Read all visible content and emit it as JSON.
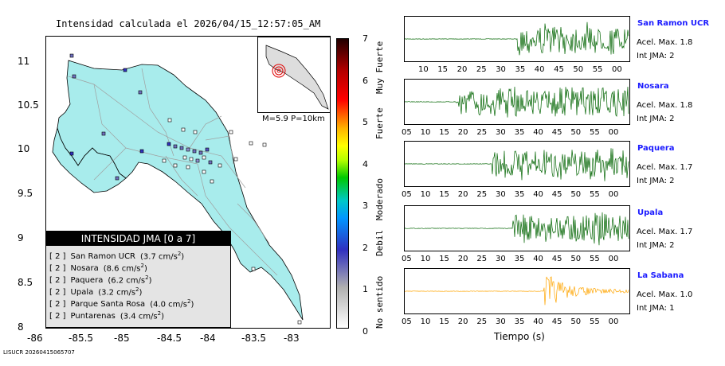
{
  "map": {
    "title": "Intensidad calculada el 2026/04/15_12:57:05_AM",
    "x_ticks": [
      "-86",
      "-85.5",
      "-85",
      "-84.5",
      "-84",
      "-83.5",
      "-83"
    ],
    "y_ticks": [
      "11",
      "10.5",
      "10",
      "9.5",
      "9",
      "8.5",
      "8"
    ],
    "legend_title": "INTENSIDAD JMA [0 a 7]",
    "legend_rows": [
      {
        "level": "[ 2 ]",
        "station": "San Ramon UCR",
        "pga": "(3.7 cm/s",
        "exp": "2",
        "close": ")"
      },
      {
        "level": "[ 2 ]",
        "station": "Nosara",
        "pga": "(8.6 cm/s",
        "exp": "2",
        "close": ")"
      },
      {
        "level": "[ 2 ]",
        "station": "Paquera",
        "pga": "(6.2 cm/s",
        "exp": "2",
        "close": ")"
      },
      {
        "level": "[ 2 ]",
        "station": "Upala",
        "pga": "(3.2 cm/s",
        "exp": "2",
        "close": ")"
      },
      {
        "level": "[ 2 ]",
        "station": "Parque Santa Rosa",
        "pga": "(4.0 cm/s",
        "exp": "2",
        "close": ")"
      },
      {
        "level": "[ 2 ]",
        "station": "Puntarenas",
        "pga": "(3.4 cm/s",
        "exp": "2",
        "close": ")"
      }
    ],
    "inset_caption": "M=5.9 P=10km",
    "colors": {
      "land": "#a8ecec",
      "roads": "#a0a0a0",
      "border": "#000000",
      "epicenter": "#e00000"
    }
  },
  "colorbar": {
    "ticks": [
      "7",
      "6",
      "5",
      "4",
      "3",
      "2",
      "1",
      "0"
    ],
    "words": [
      "Muy Fuerte",
      "Fuerte",
      "Moderado",
      "Debil",
      "No sentido"
    ]
  },
  "waveforms": [
    {
      "station": "San Ramon UCR",
      "acel": "Acel. Max. 1.8",
      "int": "Int JMA: 2",
      "ticks": [
        "10",
        "15",
        "20",
        "25",
        "30",
        "35",
        "40",
        "45",
        "50",
        "55",
        "00"
      ],
      "color": "#006400",
      "onset": 0.5
    },
    {
      "station": "Nosara",
      "acel": "Acel. Max. 1.8",
      "int": "Int JMA: 2",
      "ticks": [
        "05",
        "10",
        "15",
        "20",
        "25",
        "30",
        "35",
        "40",
        "45",
        "50",
        "55",
        "00"
      ],
      "color": "#006400",
      "onset": 0.23
    },
    {
      "station": "Paquera",
      "acel": "Acel. Max. 1.7",
      "int": "Int JMA: 2",
      "ticks": [
        "05",
        "10",
        "15",
        "20",
        "25",
        "30",
        "35",
        "40",
        "45",
        "50",
        "55",
        "00"
      ],
      "color": "#006400",
      "onset": 0.39
    },
    {
      "station": "Upala",
      "acel": "Acel. Max. 1.7",
      "int": "Int JMA: 2",
      "ticks": [
        "05",
        "10",
        "15",
        "20",
        "25",
        "30",
        "35",
        "40",
        "45",
        "50",
        "55",
        "00"
      ],
      "color": "#006400",
      "onset": 0.48
    },
    {
      "station": "La Sabana",
      "acel": "Acel. Max. 1.0",
      "int": "Int JMA: 1",
      "ticks": [
        "05",
        "10",
        "15",
        "20",
        "25",
        "30",
        "35",
        "40",
        "45",
        "50",
        "55",
        "00"
      ],
      "color": "#ffa500",
      "onset": 0.62
    }
  ],
  "x_axis_label": "Tiempo (s)",
  "footer": "LISUCR 20260415065707"
}
